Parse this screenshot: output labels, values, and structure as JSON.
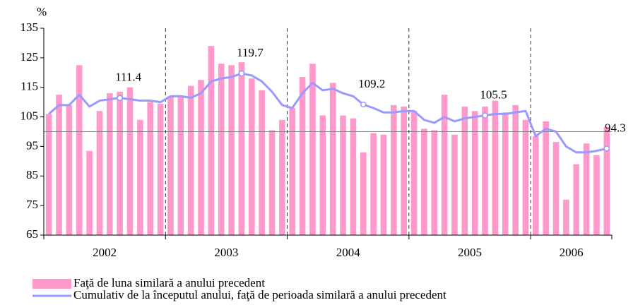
{
  "chart_data": {
    "type": "bar_line",
    "y_unit": "%",
    "categories": [
      null,
      null,
      null,
      null,
      null,
      null,
      null,
      null,
      null,
      null,
      null,
      null,
      null,
      null,
      null,
      null,
      null,
      null,
      null,
      null,
      null,
      null,
      null,
      null,
      null,
      null,
      null,
      null,
      null,
      null,
      null,
      null,
      null,
      null,
      null,
      null,
      null,
      null,
      null,
      null,
      null,
      null,
      null,
      null,
      null,
      null,
      null,
      null,
      null,
      null,
      null,
      null,
      null,
      null,
      null,
      null
    ],
    "year_labels": [
      "2002",
      "2003",
      "2004",
      "2005",
      "2006"
    ],
    "months_per_year": 12,
    "series": [
      {
        "name": "Faţă de luna similară a anului precedent",
        "kind": "bar",
        "color": "#ff99cc",
        "values": [
          106,
          112.5,
          109,
          122.5,
          93.5,
          107,
          113,
          113.5,
          115,
          104,
          110,
          109.5,
          112,
          112,
          115.5,
          117.5,
          129,
          123,
          122.5,
          123.5,
          118,
          114,
          100.5,
          104,
          108,
          118.5,
          123,
          105.5,
          116.5,
          105.5,
          104.5,
          93,
          99.5,
          99,
          109,
          108.5,
          107,
          101,
          100.5,
          112.5,
          99,
          108.5,
          107,
          108.5,
          110.5,
          106.5,
          109,
          104,
          98.5,
          103.5,
          96.5,
          77,
          89,
          96,
          92,
          101.5
        ]
      },
      {
        "name": "Cumulativ de la începutul anului, faţă de perioada similară a anului precedent",
        "kind": "line",
        "color": "#9999ff",
        "values": [
          106,
          109,
          109,
          112.5,
          108.5,
          110.5,
          111,
          111.4,
          111,
          110.5,
          110.5,
          110,
          112,
          112,
          111.5,
          113,
          117,
          118,
          118.5,
          119.7,
          119,
          117,
          113.5,
          109,
          108,
          113,
          116.5,
          114,
          114.5,
          113,
          112,
          109.2,
          108,
          106.5,
          106.5,
          107,
          107,
          104,
          103,
          105,
          103.5,
          104.5,
          105,
          105.5,
          106,
          106,
          106.5,
          107,
          98.5,
          101,
          100,
          95,
          93,
          93,
          93.5,
          94.3
        ],
        "value_labels": [
          null,
          null,
          null,
          null,
          null,
          null,
          null,
          "111.4",
          null,
          null,
          null,
          null,
          null,
          null,
          null,
          null,
          null,
          null,
          null,
          "119.7",
          null,
          null,
          null,
          null,
          null,
          null,
          null,
          null,
          null,
          null,
          null,
          "109.2",
          null,
          null,
          null,
          null,
          null,
          null,
          null,
          null,
          null,
          null,
          null,
          "105.5",
          null,
          null,
          null,
          null,
          null,
          null,
          null,
          null,
          null,
          null,
          null,
          "94.3"
        ]
      }
    ],
    "ylim": [
      65,
      135
    ],
    "yticks": [
      65,
      75,
      85,
      95,
      105,
      115,
      125,
      135
    ],
    "reference_line": 100,
    "year_separators": "dashed",
    "legend": "bottom"
  }
}
